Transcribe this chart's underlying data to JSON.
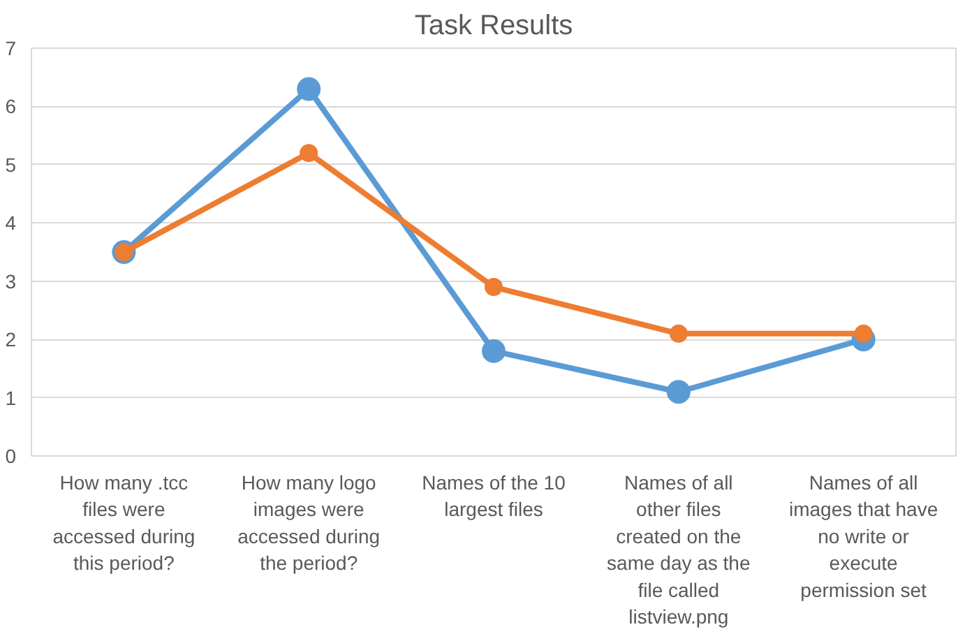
{
  "chart_data": {
    "type": "line",
    "title": "Task Results",
    "categories": [
      "How many .tcc files were accessed during this period?",
      "How many logo images were accessed during the period?",
      "Names of the 10 largest files",
      "Names of all other files created on the same day as the file called listview.png",
      "Names of all images that have no write or execute permission set"
    ],
    "series": [
      {
        "color": "#5b9bd5",
        "values": [
          3.5,
          6.3,
          1.8,
          1.1,
          2.0
        ]
      },
      {
        "color": "#ed7d31",
        "values": [
          3.5,
          5.2,
          2.9,
          2.1,
          2.1
        ]
      }
    ],
    "ylim": [
      0,
      7
    ],
    "yticks": [
      0,
      1,
      2,
      3,
      4,
      5,
      6,
      7
    ],
    "grid": "y",
    "marker": "circle",
    "line_style": "solid"
  }
}
